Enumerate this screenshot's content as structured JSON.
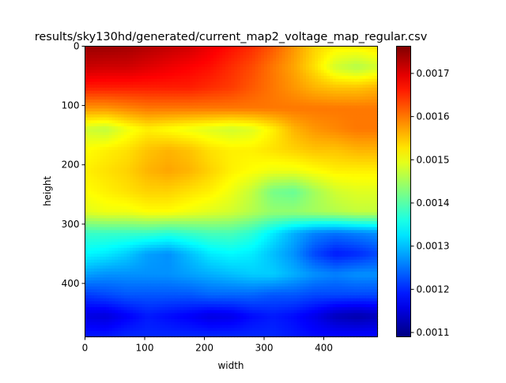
{
  "chart_data": {
    "type": "heatmap",
    "title": "results/sky130hd/generated/current_map2_voltage_map_regular.csv",
    "xlabel": "width",
    "ylabel": "height",
    "xlim": [
      0,
      490
    ],
    "ylim": [
      490,
      0
    ],
    "x_ticks": [
      {
        "value": 0,
        "label": "0"
      },
      {
        "value": 100,
        "label": "100"
      },
      {
        "value": 200,
        "label": "200"
      },
      {
        "value": 300,
        "label": "300"
      },
      {
        "value": 400,
        "label": "400"
      }
    ],
    "y_ticks": [
      {
        "value": 0,
        "label": "0"
      },
      {
        "value": 100,
        "label": "100"
      },
      {
        "value": 200,
        "label": "200"
      },
      {
        "value": 300,
        "label": "300"
      },
      {
        "value": 400,
        "label": "400"
      }
    ],
    "colormap": "jet",
    "colorbar": {
      "range": [
        0.00109,
        0.001763
      ],
      "ticks": [
        {
          "value": 0.0011,
          "label": "0.0011"
        },
        {
          "value": 0.0012,
          "label": "0.0012"
        },
        {
          "value": 0.0013,
          "label": "0.0013"
        },
        {
          "value": 0.0014,
          "label": "0.0014"
        },
        {
          "value": 0.0015,
          "label": "0.0015"
        },
        {
          "value": 0.0016,
          "label": "0.0016"
        },
        {
          "value": 0.0017,
          "label": "0.0017"
        }
      ]
    },
    "grid_x": [
      0,
      35,
      70,
      105,
      140,
      175,
      210,
      245,
      280,
      315,
      350,
      385,
      420,
      455,
      490
    ],
    "grid_y": [
      0,
      35,
      70,
      105,
      140,
      175,
      210,
      245,
      280,
      315,
      350,
      385,
      420,
      455,
      490
    ],
    "values": [
      [
        0.001745,
        0.001745,
        0.00174,
        0.00173,
        0.00172,
        0.00171,
        0.00169,
        0.00167,
        0.00165,
        0.00162,
        0.00158,
        0.00154,
        0.00152,
        0.00152,
        0.00153
      ],
      [
        0.001715,
        0.00171,
        0.00171,
        0.0017,
        0.00169,
        0.00168,
        0.00167,
        0.00165,
        0.00163,
        0.0016,
        0.00157,
        0.00153,
        0.00148,
        0.00146,
        0.00148
      ],
      [
        0.00166,
        0.00166,
        0.00166,
        0.00166,
        0.00166,
        0.00166,
        0.00165,
        0.00164,
        0.00162,
        0.0016,
        0.00158,
        0.00156,
        0.00155,
        0.00155,
        0.00156
      ],
      [
        0.00158,
        0.00158,
        0.00159,
        0.0016,
        0.0016,
        0.0016,
        0.0016,
        0.0016,
        0.0016,
        0.0016,
        0.0016,
        0.0016,
        0.0016,
        0.0016,
        0.0016
      ],
      [
        0.00148,
        0.00147,
        0.0015,
        0.00152,
        0.00151,
        0.0015,
        0.00149,
        0.00148,
        0.00149,
        0.00152,
        0.00156,
        0.00158,
        0.00159,
        0.0016,
        0.0016
      ],
      [
        0.00151,
        0.00152,
        0.00153,
        0.00155,
        0.00156,
        0.00155,
        0.00153,
        0.00152,
        0.00152,
        0.00153,
        0.00154,
        0.00155,
        0.00155,
        0.00156,
        0.00156
      ],
      [
        0.00152,
        0.00153,
        0.00154,
        0.00156,
        0.00157,
        0.00156,
        0.00154,
        0.00152,
        0.00151,
        0.0015,
        0.0015,
        0.00151,
        0.00152,
        0.00152,
        0.00152
      ],
      [
        0.00151,
        0.00152,
        0.00153,
        0.00154,
        0.00154,
        0.00153,
        0.00152,
        0.0015,
        0.00147,
        0.00142,
        0.00141,
        0.00145,
        0.00148,
        0.00149,
        0.00149
      ],
      [
        0.00149,
        0.0015,
        0.0015,
        0.00151,
        0.00151,
        0.0015,
        0.00149,
        0.00148,
        0.00146,
        0.00144,
        0.00144,
        0.00145,
        0.00146,
        0.00147,
        0.00147
      ],
      [
        0.00138,
        0.00138,
        0.00138,
        0.00138,
        0.00137,
        0.00138,
        0.00139,
        0.00139,
        0.00137,
        0.00133,
        0.00129,
        0.00126,
        0.00125,
        0.00126,
        0.00127
      ],
      [
        0.00134,
        0.00133,
        0.00131,
        0.00128,
        0.00127,
        0.0013,
        0.00133,
        0.00134,
        0.00133,
        0.0013,
        0.00127,
        0.00122,
        0.00119,
        0.0012,
        0.00122
      ],
      [
        0.00128,
        0.00127,
        0.00127,
        0.00127,
        0.00127,
        0.00128,
        0.00129,
        0.0013,
        0.00131,
        0.00131,
        0.00129,
        0.00127,
        0.00126,
        0.00127,
        0.00127
      ],
      [
        0.00121,
        0.00122,
        0.00123,
        0.00123,
        0.00123,
        0.00123,
        0.00124,
        0.00124,
        0.00124,
        0.00123,
        0.00123,
        0.00122,
        0.00122,
        0.00122,
        0.00122
      ],
      [
        0.001155,
        0.00115,
        0.00117,
        0.00119,
        0.00118,
        0.00117,
        0.001155,
        0.00116,
        0.00118,
        0.00119,
        0.00118,
        0.00116,
        0.00113,
        0.00112,
        0.00113
      ],
      [
        0.00119,
        0.00119,
        0.0012,
        0.0012,
        0.0012,
        0.0012,
        0.0012,
        0.0012,
        0.0012,
        0.0012,
        0.00119,
        0.00118,
        0.00118,
        0.00118,
        0.00118
      ]
    ]
  }
}
